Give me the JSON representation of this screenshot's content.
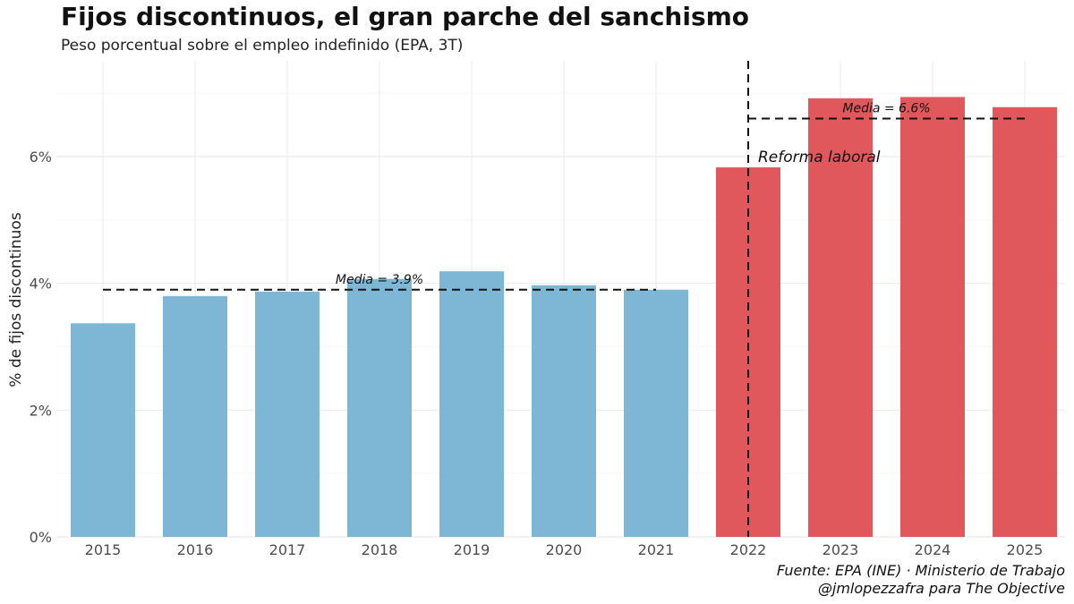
{
  "chart_data": {
    "type": "bar",
    "title": "Fijos discontinuos, el gran parche del sanchismo",
    "subtitle": "Peso porcentual sobre el empleo indefinido (EPA, 3T)",
    "xlabel": "",
    "ylabel": "% de fijos discontinuos",
    "ylim": [
      0,
      7.5
    ],
    "yticks": [
      0,
      2,
      4,
      6
    ],
    "ytick_labels": [
      "0%",
      "2%",
      "4%",
      "6%"
    ],
    "grid": true,
    "categories": [
      "2015",
      "2016",
      "2017",
      "2018",
      "2019",
      "2020",
      "2021",
      "2022",
      "2023",
      "2024",
      "2025"
    ],
    "values": [
      3.37,
      3.8,
      3.87,
      4.07,
      4.19,
      3.97,
      3.9,
      5.83,
      6.92,
      6.94,
      6.78
    ],
    "colors": [
      "#7eb6d5",
      "#7eb6d5",
      "#7eb6d5",
      "#7eb6d5",
      "#7eb6d5",
      "#7eb6d5",
      "#7eb6d5",
      "#e0575c",
      "#e0575c",
      "#e0575c",
      "#e0575c"
    ],
    "means": [
      {
        "label": "Media = 3.9%",
        "value": 3.9,
        "from": "2015",
        "to": "2021"
      },
      {
        "label": "Media = 6.6%",
        "value": 6.6,
        "from": "2022",
        "to": "2025"
      }
    ],
    "vline": {
      "label": "Reforma laboral",
      "at": "2022"
    }
  },
  "caption": {
    "line1": "Fuente: EPA (INE) · Ministerio de Trabajo",
    "line2": "@jmlopezzafra para The Objective"
  }
}
